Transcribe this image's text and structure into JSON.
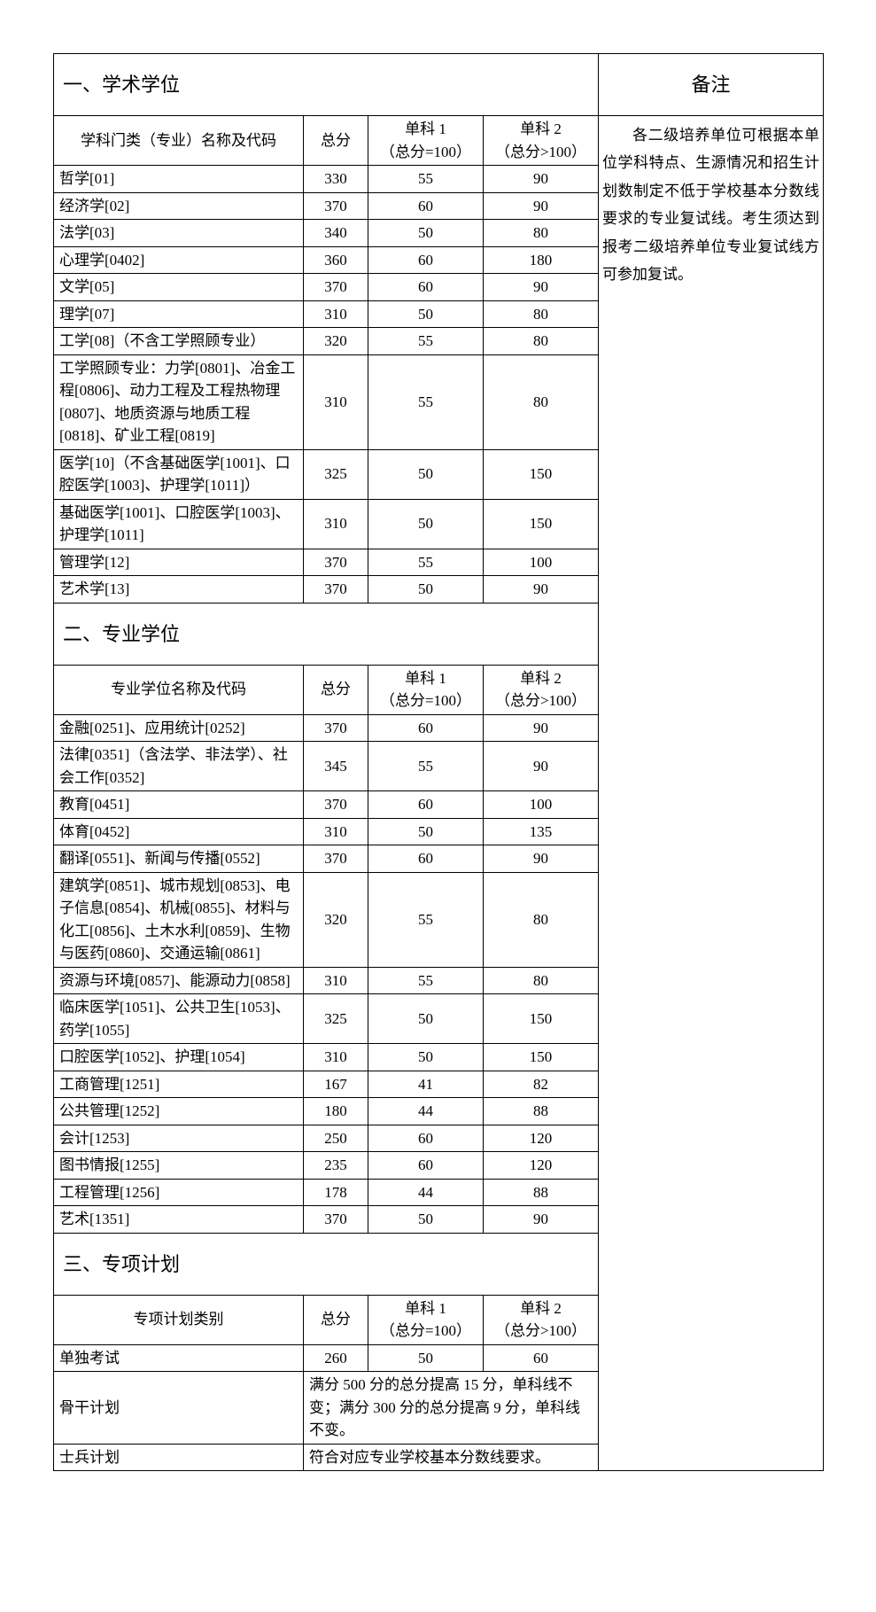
{
  "colors": {
    "border": "#000000",
    "background": "#ffffff",
    "text": "#000000"
  },
  "typography": {
    "body_fontsize": 17,
    "section_fontsize": 22,
    "font_family": "SimSun"
  },
  "sections": {
    "s1": {
      "title": "一、学术学位",
      "header_name": "学科门类（专业）名称及代码"
    },
    "s2": {
      "title": "二、专业学位",
      "header_name": "专业学位名称及代码"
    },
    "s3": {
      "title": "三、专项计划",
      "header_name": "专项计划类别"
    }
  },
  "headers": {
    "total": "总分",
    "sub1_line1": "单科 1",
    "sub1_line2": "（总分=100）",
    "sub2_line1": "单科 2",
    "sub2_line2": "（总分>100）",
    "note": "备注"
  },
  "note_text": "各二级培养单位可根据本单位学科特点、生源情况和招生计划数制定不低于学校基本分数线要求的专业复试线。考生须达到报考二级培养单位专业复试线方可参加复试。",
  "s1_rows": [
    {
      "name": "哲学[01]",
      "total": "330",
      "s1": "55",
      "s2": "90"
    },
    {
      "name": "经济学[02]",
      "total": "370",
      "s1": "60",
      "s2": "90"
    },
    {
      "name": "法学[03]",
      "total": "340",
      "s1": "50",
      "s2": "80"
    },
    {
      "name": "心理学[0402]",
      "total": "360",
      "s1": "60",
      "s2": "180"
    },
    {
      "name": "文学[05]",
      "total": "370",
      "s1": "60",
      "s2": "90"
    },
    {
      "name": "理学[07]",
      "total": "310",
      "s1": "50",
      "s2": "80"
    },
    {
      "name": "工学[08]（不含工学照顾专业）",
      "total": "320",
      "s1": "55",
      "s2": "80"
    },
    {
      "name": "工学照顾专业：力学[0801]、冶金工程[0806]、动力工程及工程热物理[0807]、地质资源与地质工程 [0818]、矿业工程[0819]",
      "total": "310",
      "s1": "55",
      "s2": "80"
    },
    {
      "name": "医学[10]（不含基础医学[1001]、口腔医学[1003]、护理学[1011]）",
      "total": "325",
      "s1": "50",
      "s2": "150"
    },
    {
      "name": "基础医学[1001]、口腔医学[1003]、护理学[1011]",
      "total": "310",
      "s1": "50",
      "s2": "150"
    },
    {
      "name": "管理学[12]",
      "total": "370",
      "s1": "55",
      "s2": "100"
    },
    {
      "name": "艺术学[13]",
      "total": "370",
      "s1": "50",
      "s2": "90"
    }
  ],
  "s2_rows": [
    {
      "name": "金融[0251]、应用统计[0252]",
      "total": "370",
      "s1": "60",
      "s2": "90"
    },
    {
      "name": "法律[0351]（含法学、非法学）、社会工作[0352]",
      "total": "345",
      "s1": "55",
      "s2": "90"
    },
    {
      "name": "教育[0451]",
      "total": "370",
      "s1": "60",
      "s2": "100"
    },
    {
      "name": "体育[0452]",
      "total": "310",
      "s1": "50",
      "s2": "135"
    },
    {
      "name": "翻译[0551]、新闻与传播[0552]",
      "total": "370",
      "s1": "60",
      "s2": "90"
    },
    {
      "name": "建筑学[0851]、城市规划[0853]、电子信息[0854]、机械[0855]、材料与化工[0856]、土木水利[0859]、生物与医药[0860]、交通运输[0861]",
      "total": "320",
      "s1": "55",
      "s2": "80"
    },
    {
      "name": "资源与环境[0857]、能源动力[0858]",
      "total": "310",
      "s1": "55",
      "s2": "80"
    },
    {
      "name": "临床医学[1051]、公共卫生[1053]、药学[1055]",
      "total": "325",
      "s1": "50",
      "s2": "150"
    },
    {
      "name": "口腔医学[1052]、护理[1054]",
      "total": "310",
      "s1": "50",
      "s2": "150"
    },
    {
      "name": "工商管理[1251]",
      "total": "167",
      "s1": "41",
      "s2": "82"
    },
    {
      "name": "公共管理[1252]",
      "total": "180",
      "s1": "44",
      "s2": "88"
    },
    {
      "name": "会计[1253]",
      "total": "250",
      "s1": "60",
      "s2": "120"
    },
    {
      "name": "图书情报[1255]",
      "total": "235",
      "s1": "60",
      "s2": "120"
    },
    {
      "name": "工程管理[1256]",
      "total": "178",
      "s1": "44",
      "s2": "88"
    },
    {
      "name": "艺术[1351]",
      "total": "370",
      "s1": "50",
      "s2": "90"
    }
  ],
  "s3_rows_simple": [
    {
      "name": "单独考试",
      "total": "260",
      "s1": "50",
      "s2": "60"
    }
  ],
  "s3_rows_merged": [
    {
      "name": "骨干计划",
      "text": "满分 500 分的总分提高 15 分，单科线不变；满分 300 分的总分提高 9 分，单科线不变。"
    },
    {
      "name": "士兵计划",
      "text": "符合对应专业学校基本分数线要求。"
    }
  ]
}
